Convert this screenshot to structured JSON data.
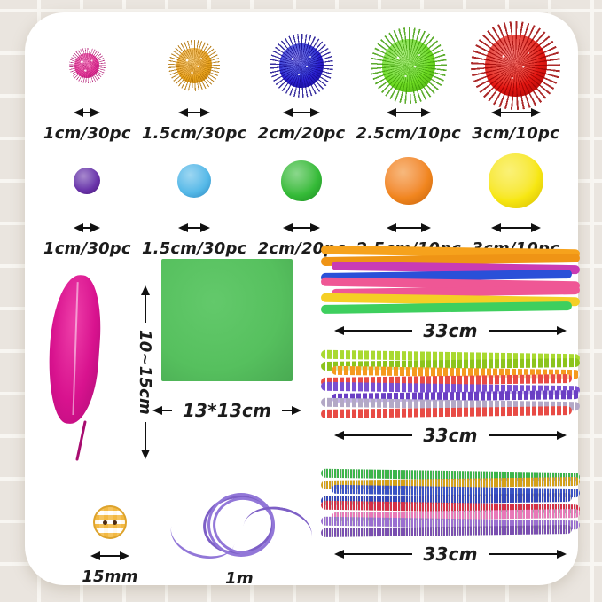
{
  "annotation": {
    "arrow_color": "#111111",
    "text_color": "#1c1c1c"
  },
  "glitter_pom_row": {
    "items": [
      {
        "name": "pink",
        "label": "1cm/30pc",
        "color": "#e83a9c",
        "color_dark": "#b01270"
      },
      {
        "name": "gold",
        "label": "1.5cm/30pc",
        "color": "#eaa41e",
        "color_dark": "#b27306"
      },
      {
        "name": "blue",
        "label": "2cm/20pc",
        "color": "#2a1fd0",
        "color_dark": "#150a8e"
      },
      {
        "name": "green",
        "label": "2.5cm/10pc",
        "color": "#6fdc23",
        "color_dark": "#3f9e08"
      },
      {
        "name": "red",
        "label": "3cm/10pc",
        "color": "#e41712",
        "color_dark": "#9e0404"
      }
    ]
  },
  "plain_pom_row": {
    "items": [
      {
        "name": "purple",
        "label": "1cm/30pc",
        "color": "#6a34aa",
        "color_dark": "#471575"
      },
      {
        "name": "light-blue",
        "label": "1.5cm/30pc",
        "color": "#55b9e8",
        "color_dark": "#2c85bc"
      },
      {
        "name": "green",
        "label": "2cm/20pc",
        "color": "#35bb38",
        "color_dark": "#1d8a23"
      },
      {
        "name": "orange",
        "label": "2.5cm/10pc",
        "color": "#f1861f",
        "color_dark": "#c25f06"
      },
      {
        "name": "yellow",
        "label": "3cm/10pc",
        "color": "#f7e713",
        "color_dark": "#d3b900"
      }
    ]
  },
  "feather": {
    "label": "10~15cm",
    "color": "#d8128e"
  },
  "paper": {
    "label": "13*13cm",
    "color": "#56c05e"
  },
  "bundles": [
    {
      "label": "33cm",
      "style": "smooth",
      "colors": [
        "#f6a21c",
        "#ef9415",
        "#c93bb4",
        "#2a50d8",
        "#ef5795",
        "#ef5795",
        "#f5cf25",
        "#3ecf5e"
      ]
    },
    {
      "label": "33cm",
      "style": "striped",
      "colors": [
        "#a9d930",
        "#8cc41c",
        "#f59a1e",
        "#e84b45",
        "#7a4fd0",
        "#6a3fc4",
        "#b3a8c6",
        "#e84b45"
      ]
    },
    {
      "label": "33cm",
      "style": "glitter",
      "colors": [
        "#3cb54a",
        "#d4a017",
        "#3a52c4",
        "#3547b8",
        "#d43048",
        "#e878b8",
        "#9a6fd0",
        "#7a4fb0"
      ]
    }
  ],
  "button": {
    "label": "15mm",
    "color": "#f2b840"
  },
  "cord": {
    "label": "1m",
    "color": "#9277d8"
  }
}
